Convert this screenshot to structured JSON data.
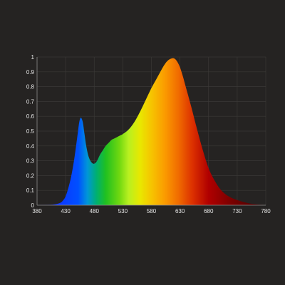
{
  "chart_data": {
    "type": "area",
    "title": "",
    "xlabel": "",
    "ylabel": "",
    "xlim": [
      380,
      780
    ],
    "ylim": [
      0,
      1
    ],
    "grid": true,
    "x_ticks": [
      "380",
      "430",
      "480",
      "530",
      "580",
      "630",
      "680",
      "730",
      "780"
    ],
    "y_ticks": [
      "0",
      "0.1",
      "0.2",
      "0.3",
      "0.4",
      "0.5",
      "0.6",
      "0.7",
      "0.8",
      "0.9",
      "1"
    ],
    "series": [
      {
        "x": [
          380,
          400,
          410,
          420,
          425,
          430,
          435,
          440,
          445,
          450,
          453,
          455,
          457,
          460,
          463,
          466,
          470,
          475,
          480,
          485,
          490,
          495,
          500,
          505,
          510,
          515,
          520,
          525,
          530,
          540,
          550,
          560,
          570,
          580,
          590,
          600,
          605,
          610,
          615,
          620,
          625,
          630,
          635,
          640,
          650,
          660,
          670,
          680,
          690,
          700,
          710,
          720,
          730,
          740,
          750,
          760,
          770,
          780
        ],
        "y": [
          0,
          0.002,
          0.005,
          0.015,
          0.03,
          0.06,
          0.12,
          0.2,
          0.31,
          0.45,
          0.54,
          0.58,
          0.59,
          0.56,
          0.48,
          0.4,
          0.33,
          0.29,
          0.28,
          0.3,
          0.34,
          0.37,
          0.4,
          0.42,
          0.44,
          0.45,
          0.46,
          0.47,
          0.48,
          0.51,
          0.56,
          0.63,
          0.71,
          0.79,
          0.86,
          0.93,
          0.96,
          0.98,
          0.99,
          0.99,
          0.97,
          0.93,
          0.87,
          0.8,
          0.66,
          0.51,
          0.37,
          0.25,
          0.17,
          0.11,
          0.073,
          0.05,
          0.035,
          0.022,
          0.013,
          0.007,
          0.003,
          0.0
        ]
      }
    ],
    "colors": {
      "background": "#252322",
      "grid": "#3a3836",
      "tick_text": "#e6e6e6"
    }
  }
}
